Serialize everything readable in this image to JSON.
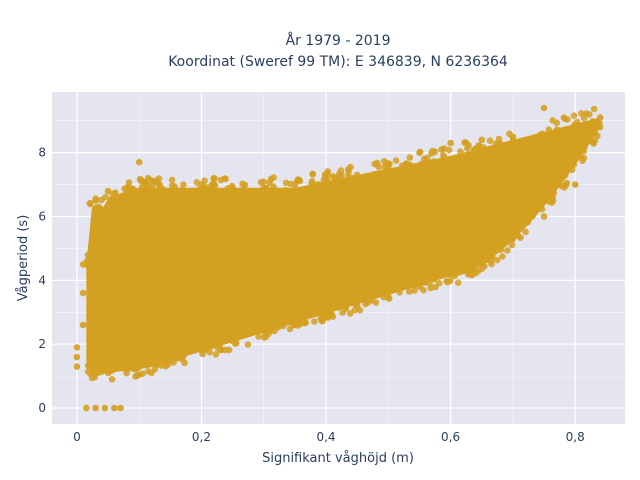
{
  "chart_data": {
    "type": "scatter",
    "title": "År 1979 - 2019",
    "subtitle": "Koordinat (Sweref 99 TM): E 346839, N 6236364",
    "xlabel": "Signifikant våghöjd (m)",
    "ylabel": "Vågperiod (s)",
    "xlim": [
      -0.04,
      0.88
    ],
    "ylim": [
      -0.5,
      9.9
    ],
    "x_ticks": [
      0,
      0.2,
      0.4,
      0.6,
      0.8
    ],
    "x_tick_labels": [
      "0",
      "0,2",
      "0,4",
      "0,6",
      "0,8"
    ],
    "y_ticks": [
      0,
      2,
      4,
      6,
      8
    ],
    "y_tick_labels": [
      "0",
      "2",
      "4",
      "6",
      "8"
    ],
    "grid": true,
    "colors": {
      "marker": "#d4a020",
      "plot_bg": "#e5e5ef",
      "grid": "#ffffff",
      "text": "#2a3f5f"
    },
    "series": [
      {
        "points": [
          [
            0.015,
            0.0
          ],
          [
            0.03,
            0.0
          ],
          [
            0.045,
            0.0
          ],
          [
            0.06,
            0.0
          ],
          [
            0.07,
            0.0
          ],
          [
            0.0,
            1.3
          ],
          [
            0.0,
            1.6
          ],
          [
            0.0,
            1.9
          ],
          [
            0.01,
            2.6
          ],
          [
            0.01,
            3.6
          ],
          [
            0.01,
            4.5
          ],
          [
            0.03,
            1.1
          ],
          [
            0.03,
            2.2
          ],
          [
            0.03,
            3.5
          ],
          [
            0.03,
            4.8
          ],
          [
            0.03,
            6.0
          ],
          [
            0.03,
            6.5
          ],
          [
            0.05,
            1.1
          ],
          [
            0.05,
            2.5
          ],
          [
            0.05,
            4.0
          ],
          [
            0.05,
            5.5
          ],
          [
            0.05,
            6.8
          ],
          [
            0.08,
            1.2
          ],
          [
            0.08,
            3.0
          ],
          [
            0.08,
            4.5
          ],
          [
            0.08,
            6.0
          ],
          [
            0.08,
            6.9
          ],
          [
            0.1,
            1.3
          ],
          [
            0.1,
            3.0
          ],
          [
            0.1,
            5.0
          ],
          [
            0.1,
            6.6
          ],
          [
            0.1,
            7.7
          ],
          [
            0.15,
            1.5
          ],
          [
            0.15,
            3.2
          ],
          [
            0.15,
            5.0
          ],
          [
            0.15,
            6.8
          ],
          [
            0.2,
            1.8
          ],
          [
            0.2,
            3.5
          ],
          [
            0.2,
            5.5
          ],
          [
            0.2,
            7.0
          ],
          [
            0.25,
            2.1
          ],
          [
            0.25,
            3.8
          ],
          [
            0.25,
            5.5
          ],
          [
            0.25,
            6.9
          ],
          [
            0.3,
            2.4
          ],
          [
            0.3,
            4.0
          ],
          [
            0.3,
            5.6
          ],
          [
            0.3,
            6.9
          ],
          [
            0.35,
            2.6
          ],
          [
            0.35,
            4.2
          ],
          [
            0.35,
            5.8
          ],
          [
            0.35,
            7.0
          ],
          [
            0.4,
            2.9
          ],
          [
            0.4,
            4.4
          ],
          [
            0.4,
            6.0
          ],
          [
            0.4,
            7.2
          ],
          [
            0.45,
            3.2
          ],
          [
            0.45,
            4.7
          ],
          [
            0.45,
            6.2
          ],
          [
            0.45,
            7.3
          ],
          [
            0.5,
            3.5
          ],
          [
            0.5,
            5.0
          ],
          [
            0.5,
            6.5
          ],
          [
            0.5,
            7.6
          ],
          [
            0.55,
            3.8
          ],
          [
            0.55,
            5.3
          ],
          [
            0.55,
            6.8
          ],
          [
            0.55,
            8.0
          ],
          [
            0.6,
            4.2
          ],
          [
            0.6,
            5.6
          ],
          [
            0.6,
            7.1
          ],
          [
            0.6,
            8.3
          ],
          [
            0.65,
            4.8
          ],
          [
            0.65,
            6.0
          ],
          [
            0.65,
            7.4
          ],
          [
            0.65,
            8.4
          ],
          [
            0.7,
            5.5
          ],
          [
            0.7,
            6.5
          ],
          [
            0.7,
            7.6
          ],
          [
            0.7,
            8.5
          ],
          [
            0.75,
            6.0
          ],
          [
            0.75,
            7.0
          ],
          [
            0.75,
            8.0
          ],
          [
            0.75,
            9.4
          ],
          [
            0.8,
            7.0
          ],
          [
            0.8,
            7.8
          ],
          [
            0.8,
            8.5
          ],
          [
            0.84,
            8.8
          ],
          [
            0.84,
            9.1
          ]
        ]
      }
    ]
  }
}
